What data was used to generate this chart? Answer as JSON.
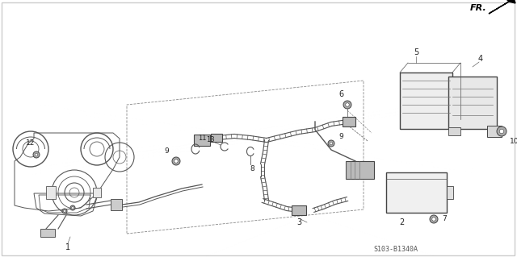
{
  "bg_color": "#ffffff",
  "fig_width": 6.4,
  "fig_height": 3.19,
  "dpi": 100,
  "diagram_code": "S103-B1340A",
  "line_color": "#444444",
  "text_color": "#222222"
}
